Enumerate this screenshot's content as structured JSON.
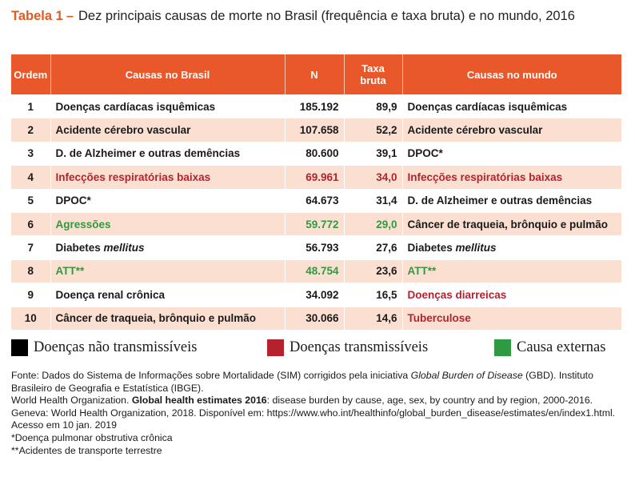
{
  "title": {
    "label": "Tabela 1",
    "dash": "–",
    "text": "Dez principais causas de morte no Brasil (frequência e taxa bruta) e no mundo, 2016"
  },
  "table": {
    "headers": {
      "ordem": "Ordem",
      "causas_brasil": "Causas no Brasil",
      "n": "N",
      "taxa_line1": "Taxa",
      "taxa_line2": "bruta",
      "causas_mundo": "Causas no mundo"
    },
    "rows": [
      {
        "ordem": "1",
        "brasil": "Doenças cardíacas isquêmicas",
        "n": "185.192",
        "taxa": "89,9",
        "mundo": "Doenças cardíacas isquêmicas"
      },
      {
        "ordem": "2",
        "brasil": "Acidente cérebro vascular",
        "n": "107.658",
        "taxa": "52,2",
        "mundo": "Acidente cérebro vascular"
      },
      {
        "ordem": "3",
        "brasil": "D. de Alzheimer e outras demências",
        "n": "80.600",
        "taxa": "39,1",
        "mundo": "DPOC*"
      },
      {
        "ordem": "4",
        "brasil": "Infecções respiratórias baixas",
        "n": "69.961",
        "taxa": "34,0",
        "mundo": "Infecções respiratórias baixas"
      },
      {
        "ordem": "5",
        "brasil": "DPOC*",
        "n": "64.673",
        "taxa": "31,4",
        "mundo": "D. de Alzheimer e outras demências"
      },
      {
        "ordem": "6",
        "brasil": "Agressões",
        "n": "59.772",
        "taxa": "29,0",
        "mundo": "Câncer de traqueia, brônquio e pulmão"
      },
      {
        "ordem": "7",
        "brasil_pre": "Diabetes",
        "brasil_it": "mellitus",
        "n": "56.793",
        "taxa": "27,6",
        "mundo_pre": "Diabetes",
        "mundo_it": "mellitus"
      },
      {
        "ordem": "8",
        "brasil": "ATT**",
        "n": "48.754",
        "taxa": "23,6",
        "mundo": "ATT**"
      },
      {
        "ordem": "9",
        "brasil": "Doença renal crônica",
        "n": "34.092",
        "taxa": "16,5",
        "mundo": "Doenças diarreicas"
      },
      {
        "ordem": "10",
        "brasil": "Câncer de traqueia, brônquio e pulmão",
        "n": "30.066",
        "taxa": "14,6",
        "mundo": "Tuberculose"
      }
    ]
  },
  "colors": {
    "header_bg": "#e8582a",
    "row_alt": "#fbe0d2",
    "nao_transmissiveis": "#000000",
    "transmissiveis": "#b5222e",
    "externas": "#2e9a41"
  },
  "legend": {
    "nao_transmissiveis": "Doenças não transmissíveis",
    "transmissiveis": "Doenças transmissíveis",
    "externas": "Causa externas"
  },
  "footer": {
    "fonte_pre": "Fonte: Dados do Sistema de Informações sobre Mortalidade (SIM) corrigidos pela iniciativa ",
    "fonte_it": "Global Burden of Disease",
    "fonte_post": " (GBD). Instituto Brasileiro de Geografia e Estatística (IBGE).",
    "who_pre": "World Health Organization. ",
    "who_bold": "Global health estimates 2016",
    "who_post": ": disease burden by cause, age, sex, by country and by region, 2000-2016. Geneva: World Health Organization, 2018. Disponível em: https://www.who.int/healthinfo/global_burden_disease/estimates/en/index1.html. Acesso em 10 jan. 2019",
    "note1": "*Doença pulmonar obstrutiva crônica",
    "note2": "**Acidentes de transporte terrestre"
  }
}
